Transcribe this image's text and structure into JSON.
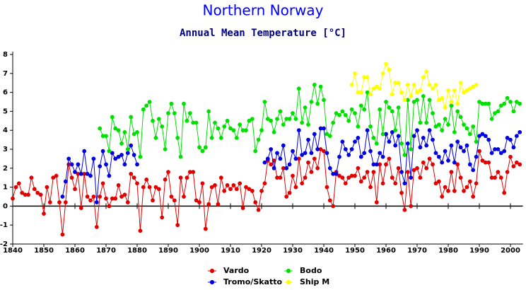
{
  "chart_data": {
    "type": "line",
    "title": "Northern Norway",
    "subtitle": "Annual Mean Temperature [°C]",
    "x": [
      1840,
      1841,
      1842,
      1843,
      1844,
      1845,
      1846,
      1847,
      1848,
      1849,
      1850,
      1851,
      1852,
      1853,
      1854,
      1855,
      1856,
      1857,
      1858,
      1859,
      1860,
      1861,
      1862,
      1863,
      1864,
      1865,
      1866,
      1867,
      1868,
      1869,
      1870,
      1871,
      1872,
      1873,
      1874,
      1875,
      1876,
      1877,
      1878,
      1879,
      1880,
      1881,
      1882,
      1883,
      1884,
      1885,
      1886,
      1887,
      1888,
      1889,
      1890,
      1891,
      1892,
      1893,
      1894,
      1895,
      1896,
      1897,
      1898,
      1899,
      1900,
      1901,
      1902,
      1903,
      1904,
      1905,
      1906,
      1907,
      1908,
      1909,
      1910,
      1911,
      1912,
      1913,
      1914,
      1915,
      1916,
      1917,
      1918,
      1919,
      1920,
      1921,
      1922,
      1923,
      1924,
      1925,
      1926,
      1927,
      1928,
      1929,
      1930,
      1931,
      1932,
      1933,
      1934,
      1935,
      1936,
      1937,
      1938,
      1939,
      1940,
      1941,
      1942,
      1943,
      1944,
      1945,
      1946,
      1947,
      1948,
      1949,
      1950,
      1951,
      1952,
      1953,
      1954,
      1955,
      1956,
      1957,
      1958,
      1959,
      1960,
      1961,
      1962,
      1963,
      1964,
      1965,
      1966,
      1967,
      1968,
      1969,
      1970,
      1971,
      1972,
      1973,
      1974,
      1975,
      1976,
      1977,
      1978,
      1979,
      1980,
      1981,
      1982,
      1983,
      1984,
      1985,
      1986,
      1987,
      1988,
      1989,
      1990,
      1991,
      1992,
      1993,
      1994,
      1995,
      1996,
      1997,
      1998,
      1999,
      2000,
      2001,
      2002,
      2003
    ],
    "series": [
      {
        "name": "Vardo",
        "color": "#e00000",
        "values": [
          0.4,
          1.0,
          1.2,
          0.7,
          0.6,
          0.6,
          1.5,
          0.9,
          0.7,
          0.6,
          -0.4,
          1.0,
          0.2,
          1.5,
          1.6,
          0.2,
          -1.5,
          0.2,
          2.2,
          1.5,
          0.9,
          1.7,
          -0.1,
          1.7,
          0.5,
          0.3,
          0.5,
          -1.1,
          0.5,
          1.2,
          0.4,
          0.0,
          0.4,
          0.4,
          1.1,
          0.5,
          0.6,
          0.2,
          1.7,
          1.5,
          1.2,
          -1.3,
          1.0,
          1.4,
          1.0,
          0.3,
          1.0,
          0.9,
          -0.6,
          1.4,
          1.8,
          0.5,
          0.3,
          -1.0,
          1.5,
          0.5,
          1.5,
          1.8,
          1.8,
          0.3,
          0.2,
          1.2,
          -1.2,
          0.1,
          1.0,
          1.1,
          0.1,
          1.5,
          0.8,
          1.1,
          0.9,
          1.1,
          0.9,
          1.2,
          -0.1,
          1.0,
          0.9,
          0.8,
          0.2,
          -0.2,
          0.8,
          1.2,
          2.4,
          2.2,
          2.4,
          1.5,
          1.5,
          2.0,
          0.5,
          0.7,
          1.6,
          1.0,
          2.5,
          1.2,
          1.5,
          2.3,
          1.8,
          2.5,
          2.0,
          3.0,
          2.9,
          1.0,
          0.3,
          0.0,
          1.8,
          1.6,
          1.5,
          1.2,
          1.5,
          1.6,
          1.6,
          2.0,
          1.3,
          1.5,
          1.8,
          1.0,
          1.8,
          0.2,
          2.2,
          1.2,
          2.2,
          2.5,
          1.5,
          1.2,
          2.0,
          0.7,
          -0.2,
          1.8,
          0.0,
          1.9,
          2.0,
          1.5,
          2.3,
          2.0,
          2.5,
          2.2,
          1.2,
          1.3,
          0.5,
          1.0,
          0.8,
          1.8,
          0.8,
          2.2,
          1.5,
          0.8,
          1.0,
          1.3,
          0.5,
          1.2,
          2.9,
          2.4,
          2.3,
          2.3,
          1.5,
          1.5,
          1.8,
          1.5,
          0.7,
          1.8,
          2.6,
          2.1,
          2.3,
          2.2
        ]
      },
      {
        "name": "Tromo/Skatto",
        "color": "#0000e0",
        "values": [
          null,
          null,
          null,
          null,
          null,
          null,
          null,
          null,
          null,
          null,
          null,
          null,
          null,
          null,
          null,
          null,
          0.5,
          1.3,
          2.5,
          2.2,
          1.8,
          2.2,
          1.7,
          2.9,
          1.7,
          1.6,
          2.5,
          0.2,
          2.1,
          2.9,
          2.2,
          1.6,
          2.8,
          2.5,
          2.6,
          2.7,
          2.2,
          2.8,
          3.2,
          2.7,
          2.2,
          null,
          null,
          null,
          null,
          null,
          null,
          null,
          null,
          null,
          null,
          null,
          null,
          null,
          null,
          null,
          null,
          null,
          null,
          null,
          null,
          null,
          null,
          null,
          null,
          null,
          null,
          null,
          null,
          null,
          null,
          null,
          null,
          null,
          null,
          null,
          null,
          null,
          null,
          null,
          null,
          2.3,
          2.5,
          3.0,
          2.0,
          2.8,
          2.5,
          3.2,
          2.0,
          2.2,
          2.9,
          2.5,
          4.0,
          2.7,
          2.8,
          3.5,
          2.8,
          3.8,
          3.0,
          4.1,
          4.1,
          2.8,
          2.0,
          1.7,
          1.7,
          2.6,
          3.4,
          3.0,
          2.7,
          3.0,
          3.4,
          3.6,
          2.6,
          2.8,
          4.0,
          2.9,
          2.2,
          2.2,
          2.8,
          2.6,
          3.8,
          3.4,
          3.9,
          3.2,
          3.7,
          1.8,
          1.2,
          3.3,
          1.5,
          3.7,
          4.0,
          3.1,
          3.6,
          3.2,
          4.0,
          3.5,
          2.8,
          2.6,
          2.3,
          2.9,
          2.4,
          3.2,
          2.3,
          3.4,
          3.1,
          2.9,
          3.2,
          2.2,
          1.9,
          2.6,
          3.7,
          3.8,
          3.7,
          3.5,
          2.8,
          3.0,
          3.0,
          2.8,
          2.9,
          3.6,
          3.5,
          3.1,
          3.7,
          3.9
        ]
      },
      {
        "name": "Bodo",
        "color": "#00e000",
        "values": [
          null,
          null,
          null,
          null,
          null,
          null,
          null,
          null,
          null,
          null,
          null,
          null,
          null,
          null,
          null,
          null,
          null,
          null,
          null,
          null,
          null,
          null,
          null,
          null,
          null,
          null,
          null,
          null,
          4.1,
          3.7,
          3.7,
          2.9,
          4.7,
          4.1,
          4.0,
          3.3,
          3.9,
          3.0,
          4.7,
          3.8,
          3.9,
          2.6,
          5.1,
          5.3,
          5.5,
          4.5,
          3.6,
          4.6,
          4.2,
          3.0,
          4.9,
          5.4,
          4.9,
          3.6,
          2.6,
          5.4,
          4.5,
          4.9,
          4.4,
          4.4,
          3.1,
          2.9,
          3.1,
          5.0,
          3.6,
          4.4,
          4.1,
          3.6,
          4.2,
          4.5,
          4.1,
          4.0,
          3.6,
          4.3,
          4.0,
          4.0,
          4.5,
          4.6,
          2.9,
          3.5,
          4.0,
          5.5,
          4.6,
          4.5,
          3.9,
          4.6,
          5.0,
          4.3,
          4.6,
          4.6,
          4.9,
          4.6,
          6.2,
          4.4,
          5.2,
          4.3,
          5.5,
          6.4,
          5.4,
          6.3,
          5.6,
          3.8,
          3.7,
          4.4,
          4.9,
          4.8,
          5.0,
          4.8,
          4.5,
          5.1,
          4.9,
          4.2,
          5.3,
          5.1,
          6.0,
          4.2,
          3.6,
          3.3,
          5.1,
          3.8,
          5.5,
          5.2,
          5.0,
          4.0,
          5.2,
          3.3,
          2.7,
          5.6,
          3.0,
          5.5,
          5.6,
          4.4,
          5.8,
          4.4,
          5.6,
          4.9,
          4.2,
          4.3,
          4.0,
          4.6,
          4.3,
          5.3,
          3.9,
          5.0,
          4.7,
          4.3,
          4.1,
          3.8,
          4.2,
          3.4,
          5.5,
          5.4,
          5.4,
          5.4,
          4.6,
          4.9,
          5.0,
          5.3,
          5.4,
          5.7,
          5.5,
          5.0,
          5.5,
          5.4
        ]
      },
      {
        "name": "Ship M",
        "color": "#ffff00",
        "values": [
          null,
          null,
          null,
          null,
          null,
          null,
          null,
          null,
          null,
          null,
          null,
          null,
          null,
          null,
          null,
          null,
          null,
          null,
          null,
          null,
          null,
          null,
          null,
          null,
          null,
          null,
          null,
          null,
          null,
          null,
          null,
          null,
          null,
          null,
          null,
          null,
          null,
          null,
          null,
          null,
          null,
          null,
          null,
          null,
          null,
          null,
          null,
          null,
          null,
          null,
          null,
          null,
          null,
          null,
          null,
          null,
          null,
          null,
          null,
          null,
          null,
          null,
          null,
          null,
          null,
          null,
          null,
          null,
          null,
          null,
          null,
          null,
          null,
          null,
          null,
          null,
          null,
          null,
          null,
          null,
          null,
          null,
          null,
          null,
          null,
          null,
          null,
          null,
          null,
          null,
          null,
          null,
          null,
          null,
          null,
          null,
          null,
          null,
          null,
          null,
          null,
          null,
          null,
          null,
          null,
          null,
          null,
          null,
          null,
          6.4,
          7.0,
          6.0,
          6.0,
          6.8,
          6.8,
          5.9,
          6.2,
          6.3,
          6.2,
          7.0,
          7.5,
          7.2,
          5.9,
          6.5,
          6.5,
          6.0,
          5.6,
          6.4,
          5.8,
          6.4,
          6.0,
          6.1,
          6.8,
          7.1,
          6.4,
          6.2,
          6.4,
          5.6,
          5.7,
          5.2,
          6.1,
          5.5,
          6.1,
          5.4,
          6.5,
          6.0,
          6.1,
          6.2,
          6.3,
          6.4,
          null,
          null,
          null,
          null,
          null,
          null,
          null,
          null,
          null,
          null,
          null,
          null,
          null,
          null
        ]
      }
    ],
    "xlim": [
      1840,
      2004
    ],
    "xticks": [
      1840,
      1850,
      1860,
      1870,
      1880,
      1890,
      1900,
      1910,
      1920,
      1930,
      1940,
      1950,
      1960,
      1970,
      1980,
      1990,
      2000
    ],
    "ylim": [
      -2,
      8
    ],
    "yticks": [
      -2,
      -1,
      0,
      1,
      2,
      3,
      4,
      5,
      6,
      7,
      8
    ],
    "grid": false
  }
}
